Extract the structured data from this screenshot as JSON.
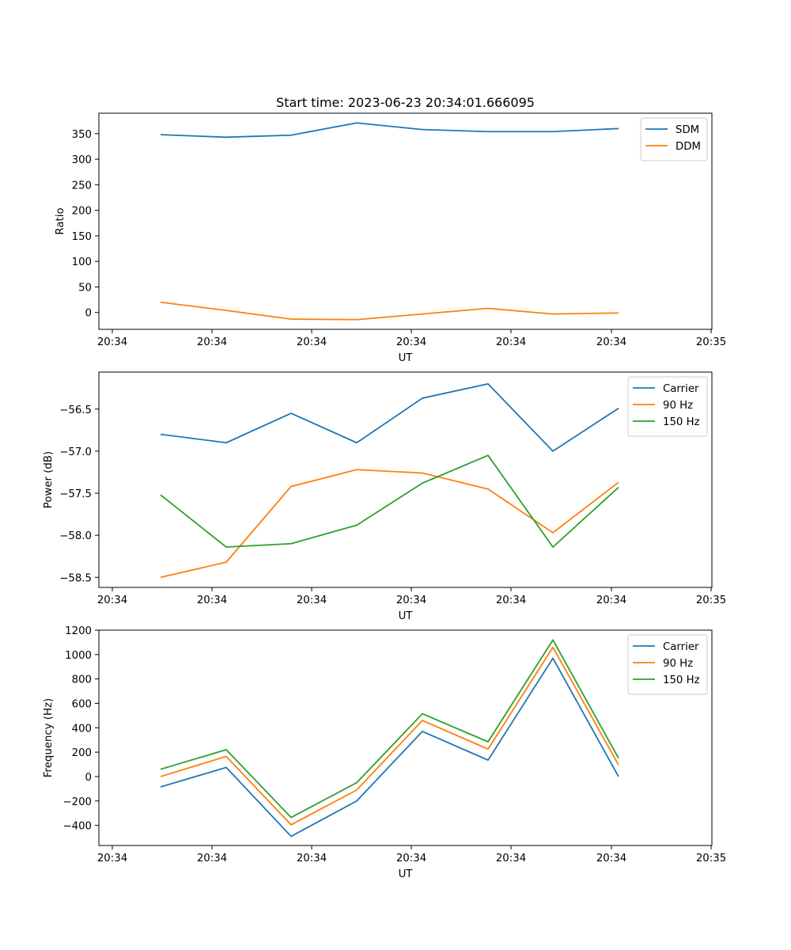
{
  "chart_data": [
    {
      "type": "line",
      "title": "Start time: 2023-06-23 20:34:01.666095",
      "xlabel": "UT",
      "ylabel": "Ratio",
      "x_tick_labels": [
        "20:34",
        "20:34",
        "20:34",
        "20:34",
        "20:34",
        "20:34",
        "20:34",
        "20:35"
      ],
      "y_ticks": [
        0,
        50,
        100,
        150,
        200,
        250,
        300,
        350
      ],
      "ylim": [
        -33,
        390
      ],
      "x": [
        1,
        2,
        3,
        4,
        5,
        6,
        7,
        8
      ],
      "legend_position": "top-right",
      "grid": false,
      "series": [
        {
          "name": "SDM",
          "color": "#1f77b4",
          "values": [
            348,
            343,
            347,
            371,
            358,
            354,
            354,
            360
          ]
        },
        {
          "name": "DDM",
          "color": "#ff7f0e",
          "values": [
            20,
            4,
            -13,
            -14,
            -3,
            8,
            -3,
            -1
          ]
        }
      ]
    },
    {
      "type": "line",
      "title": "",
      "xlabel": "UT",
      "ylabel": "Power (dB)",
      "x_tick_labels": [
        "20:34",
        "20:34",
        "20:34",
        "20:34",
        "20:34",
        "20:34",
        "20:34",
        "20:35"
      ],
      "y_ticks": [
        -58.5,
        -58.0,
        -57.5,
        -57.0,
        -56.5
      ],
      "y_tick_labels": [
        "−58.5",
        "−58.0",
        "−57.5",
        "−57.0",
        "−56.5"
      ],
      "ylim": [
        -58.62,
        -56.06
      ],
      "x": [
        1,
        2,
        3,
        4,
        5,
        6,
        7,
        8
      ],
      "legend_position": "top-right",
      "grid": false,
      "series": [
        {
          "name": "Carrier",
          "color": "#1f77b4",
          "values": [
            -56.8,
            -56.9,
            -56.55,
            -56.9,
            -56.37,
            -56.2,
            -57.0,
            -56.49
          ]
        },
        {
          "name": "90 Hz",
          "color": "#ff7f0e",
          "values": [
            -58.5,
            -58.32,
            -57.42,
            -57.22,
            -57.26,
            -57.45,
            -57.97,
            -57.37
          ]
        },
        {
          "name": "150 Hz",
          "color": "#2ca02c",
          "values": [
            -57.52,
            -58.14,
            -58.1,
            -57.88,
            -57.38,
            -57.05,
            -58.14,
            -57.43
          ]
        }
      ]
    },
    {
      "type": "line",
      "title": "",
      "xlabel": "UT",
      "ylabel": "Frequency (Hz)",
      "x_tick_labels": [
        "20:34",
        "20:34",
        "20:34",
        "20:34",
        "20:34",
        "20:34",
        "20:34",
        "20:35"
      ],
      "y_ticks": [
        -400,
        -200,
        0,
        200,
        400,
        600,
        800,
        1000,
        1200
      ],
      "y_tick_labels": [
        "−400",
        "−200",
        "0",
        "200",
        "400",
        "600",
        "800",
        "1000",
        "1200"
      ],
      "ylim": [
        -565,
        1200
      ],
      "x": [
        1,
        2,
        3,
        4,
        5,
        6,
        7,
        8
      ],
      "legend_position": "top-right",
      "grid": false,
      "series": [
        {
          "name": "Carrier",
          "color": "#1f77b4",
          "values": [
            -85,
            75,
            -490,
            -200,
            370,
            135,
            970,
            0
          ]
        },
        {
          "name": "90 Hz",
          "color": "#ff7f0e",
          "values": [
            0,
            165,
            -395,
            -110,
            460,
            225,
            1060,
            95
          ]
        },
        {
          "name": "150 Hz",
          "color": "#2ca02c",
          "values": [
            60,
            220,
            -335,
            -50,
            515,
            285,
            1120,
            150
          ]
        }
      ]
    }
  ]
}
